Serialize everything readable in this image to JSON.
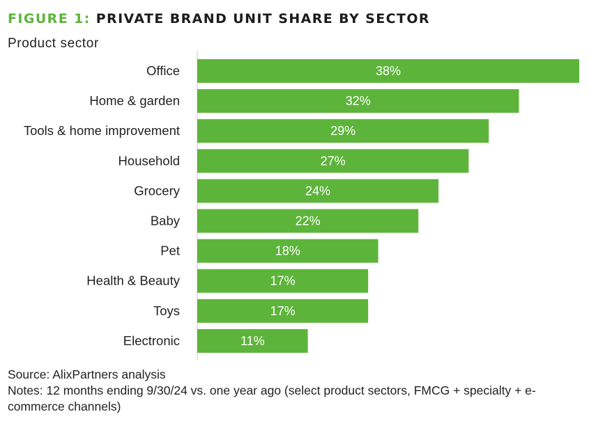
{
  "title": {
    "figure_label": "FIGURE 1:",
    "text": "PRIVATE BRAND UNIT SHARE BY SECTOR"
  },
  "source": "Source: AlixPartners analysis",
  "notes": "Notes: 12 months ending 9/30/24 vs. one year ago (select product sectors, FMCG + specialty + e-commerce channels)",
  "chart_data": {
    "type": "bar",
    "orientation": "horizontal",
    "ylabel": "Product sector",
    "categories": [
      "Office",
      "Home & garden",
      "Tools & home improvement",
      "Household",
      "Grocery",
      "Baby",
      "Pet",
      "Health & Beauty",
      "Toys",
      "Electronic"
    ],
    "values": [
      38,
      32,
      29,
      27,
      24,
      22,
      18,
      17,
      17,
      11
    ],
    "value_labels": [
      "38%",
      "32%",
      "29%",
      "27%",
      "24%",
      "22%",
      "18%",
      "17%",
      "17%",
      "11%"
    ],
    "unit": "%",
    "xlim": [
      0,
      38
    ],
    "grid": false,
    "legend": "none",
    "colors": {
      "bar": "#5db43a",
      "bar_label": "#ffffff",
      "title_accent": "#5db43a",
      "axis_line": "#c8c8c8"
    }
  }
}
